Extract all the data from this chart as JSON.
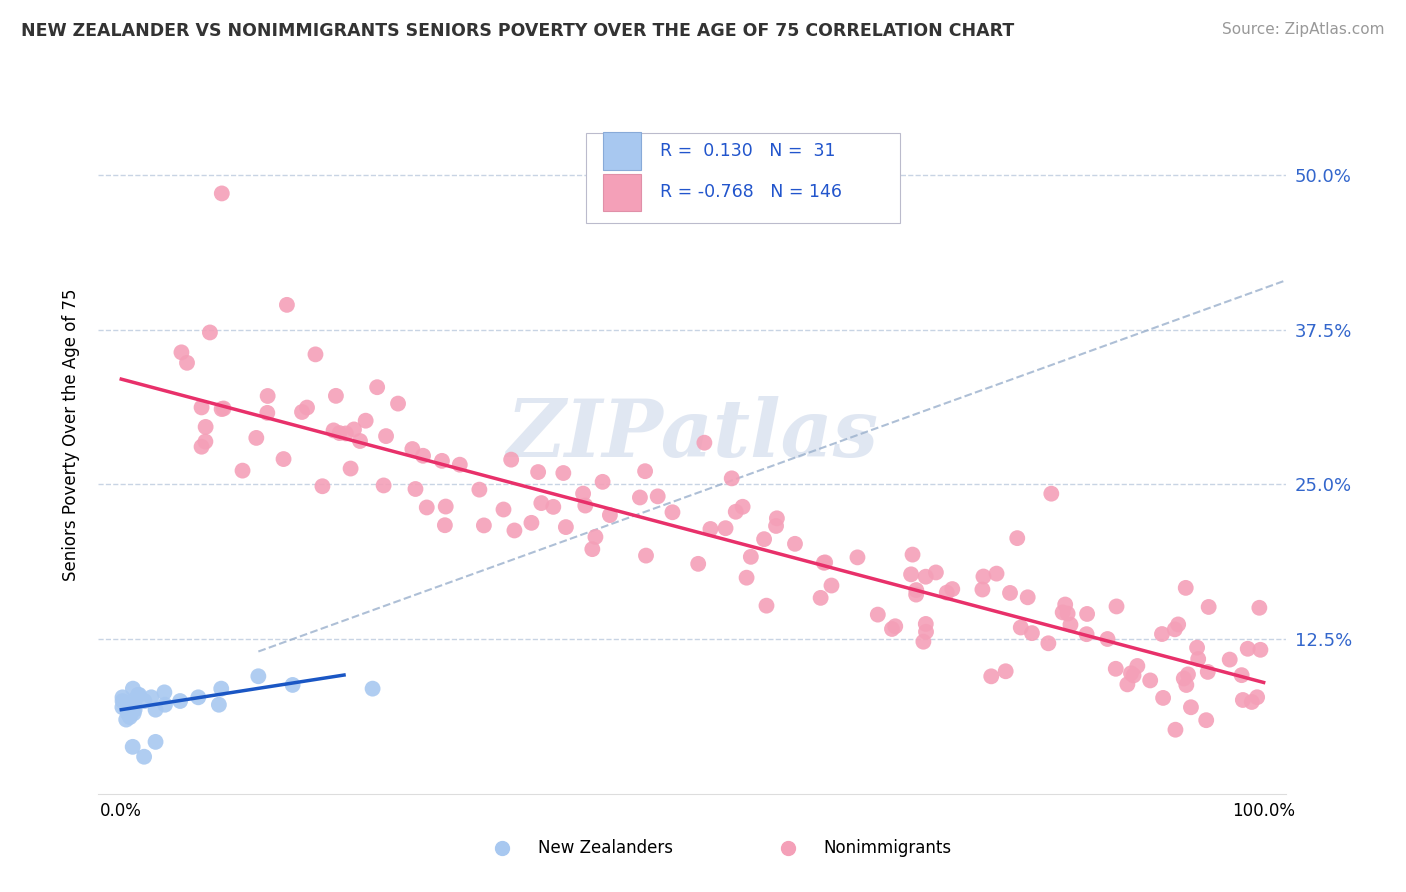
{
  "title": "NEW ZEALANDER VS NONIMMIGRANTS SENIORS POVERTY OVER THE AGE OF 75 CORRELATION CHART",
  "source": "Source: ZipAtlas.com",
  "ylabel": "Seniors Poverty Over the Age of 75",
  "ytick_labels": [
    "12.5%",
    "25.0%",
    "37.5%",
    "50.0%"
  ],
  "ytick_values": [
    0.125,
    0.25,
    0.375,
    0.5
  ],
  "xlim": [
    0.0,
    1.0
  ],
  "ylim": [
    0.0,
    0.56
  ],
  "legend_nz_R": "0.130",
  "legend_nz_N": "31",
  "legend_ni_R": "-0.768",
  "legend_ni_N": "146",
  "nz_color": "#a8c8f0",
  "ni_color": "#f4a0b8",
  "nz_line_color": "#1a56c4",
  "ni_line_color": "#e8306a",
  "dashed_line_color": "#9ab0cc",
  "watermark_color": "#c8d4e8",
  "title_color": "#333333",
  "source_color": "#999999",
  "tick_color": "#3366cc",
  "grid_color": "#c8d4e4"
}
